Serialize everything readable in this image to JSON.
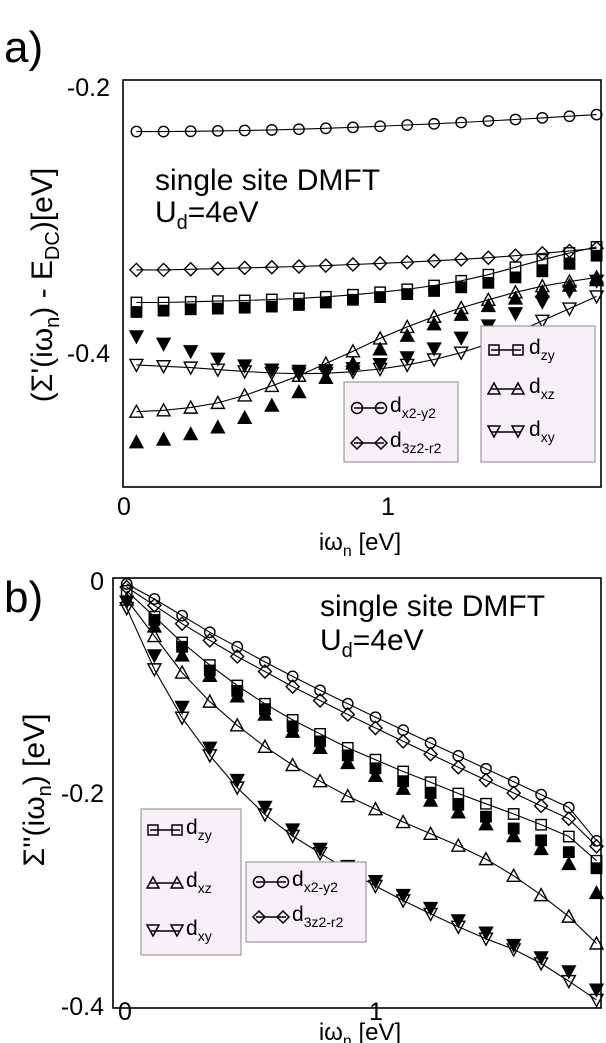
{
  "chart_data": [
    {
      "panel": "a)",
      "type": "scatter",
      "xlabel": "iω_n [eV]",
      "ylabel": "(Σ'(iω_n) - E_DC)[eV]",
      "xlim": [
        0,
        1.85
      ],
      "ylim": [
        -0.48,
        -0.18
      ],
      "xticks": [
        "0",
        "1"
      ],
      "yticks": [
        "-0.2",
        "-0.4"
      ],
      "annotation": [
        "single site DMFT",
        "U",
        "d",
        "=4eV"
      ],
      "legend_left": [
        "x2-y2",
        "3z2-r2"
      ],
      "legend_right": [
        "zy",
        "xz",
        "xy"
      ],
      "series": [
        {
          "name": "x2-y2",
          "marker": "circle",
          "filled": false,
          "line": true,
          "x": [
            0.052,
            0.157,
            0.262,
            0.367,
            0.471,
            0.576,
            0.681,
            0.785,
            0.89,
            0.995,
            1.1,
            1.204,
            1.309,
            1.414,
            1.519,
            1.623,
            1.728,
            1.833
          ],
          "y": [
            -0.218,
            -0.218,
            -0.2178,
            -0.2175,
            -0.2172,
            -0.2168,
            -0.2163,
            -0.2156,
            -0.2149,
            -0.2141,
            -0.2132,
            -0.2123,
            -0.2113,
            -0.2102,
            -0.2091,
            -0.2079,
            -0.2067,
            -0.2055
          ]
        },
        {
          "name": "3z2-r2",
          "marker": "diamond",
          "filled": false,
          "line": true,
          "x": [
            0.052,
            0.157,
            0.262,
            0.367,
            0.471,
            0.576,
            0.681,
            0.785,
            0.89,
            0.995,
            1.1,
            1.204,
            1.309,
            1.414,
            1.519,
            1.623,
            1.728,
            1.833
          ],
          "y": [
            -0.32,
            -0.32,
            -0.3195,
            -0.319,
            -0.3185,
            -0.318,
            -0.3175,
            -0.3168,
            -0.316,
            -0.3152,
            -0.3143,
            -0.3133,
            -0.3122,
            -0.311,
            -0.3095,
            -0.3078,
            -0.306,
            -0.304
          ]
        },
        {
          "name": "zy",
          "marker": "square",
          "filled": false,
          "line": true,
          "x": [
            0.052,
            0.157,
            0.262,
            0.367,
            0.471,
            0.576,
            0.681,
            0.785,
            0.89,
            0.995,
            1.1,
            1.204,
            1.309,
            1.414,
            1.519,
            1.623,
            1.728,
            1.833
          ],
          "y": [
            -0.344,
            -0.344,
            -0.3435,
            -0.343,
            -0.3425,
            -0.3418,
            -0.341,
            -0.3398,
            -0.3383,
            -0.3365,
            -0.3343,
            -0.3315,
            -0.328,
            -0.3235,
            -0.318,
            -0.3125,
            -0.3075,
            -0.303
          ]
        },
        {
          "name": "zy (filled)",
          "marker": "square",
          "filled": true,
          "line": false,
          "x": [
            0.052,
            0.157,
            0.262,
            0.367,
            0.471,
            0.576,
            0.681,
            0.785,
            0.89,
            0.995,
            1.1,
            1.204,
            1.309,
            1.414,
            1.519,
            1.623,
            1.728,
            1.833
          ],
          "y": [
            -0.351,
            -0.35,
            -0.349,
            -0.3485,
            -0.3478,
            -0.347,
            -0.3458,
            -0.344,
            -0.342,
            -0.34,
            -0.3378,
            -0.3355,
            -0.3328,
            -0.3295,
            -0.3255,
            -0.321,
            -0.3155,
            -0.3095
          ]
        },
        {
          "name": "xz",
          "marker": "triangle-up",
          "filled": false,
          "line": true,
          "x": [
            0.052,
            0.157,
            0.262,
            0.367,
            0.471,
            0.576,
            0.681,
            0.785,
            0.89,
            0.995,
            1.1,
            1.204,
            1.309,
            1.414,
            1.519,
            1.623,
            1.728,
            1.833
          ],
          "y": [
            -0.4245,
            -0.4235,
            -0.4215,
            -0.418,
            -0.4125,
            -0.4055,
            -0.398,
            -0.389,
            -0.38,
            -0.3705,
            -0.362,
            -0.3545,
            -0.348,
            -0.342,
            -0.3365,
            -0.332,
            -0.3285,
            -0.3255
          ]
        },
        {
          "name": "xz (filled)",
          "marker": "triangle-up",
          "filled": true,
          "line": false,
          "x": [
            0.052,
            0.157,
            0.262,
            0.367,
            0.471,
            0.576,
            0.681,
            0.785,
            0.89,
            0.995,
            1.1,
            1.204,
            1.309,
            1.414,
            1.519,
            1.623,
            1.728,
            1.833
          ],
          "y": [
            -0.447,
            -0.445,
            -0.441,
            -0.436,
            -0.429,
            -0.42,
            -0.41,
            -0.3995,
            -0.389,
            -0.3785,
            -0.3685,
            -0.36,
            -0.353,
            -0.3465,
            -0.341,
            -0.336,
            -0.3315,
            -0.3275
          ]
        },
        {
          "name": "xy",
          "marker": "triangle-down",
          "filled": false,
          "line": true,
          "x": [
            0.052,
            0.157,
            0.262,
            0.367,
            0.471,
            0.576,
            0.681,
            0.785,
            0.89,
            0.995,
            1.1,
            1.204,
            1.309,
            1.414,
            1.519,
            1.623,
            1.728,
            1.833
          ],
          "y": [
            -0.39,
            -0.391,
            -0.392,
            -0.3935,
            -0.3948,
            -0.396,
            -0.3965,
            -0.3962,
            -0.395,
            -0.393,
            -0.39,
            -0.386,
            -0.381,
            -0.3745,
            -0.3665,
            -0.3575,
            -0.3485,
            -0.3395
          ]
        },
        {
          "name": "xy (filled)",
          "marker": "triangle-down",
          "filled": true,
          "line": false,
          "x": [
            0.052,
            0.157,
            0.262,
            0.367,
            0.471,
            0.576,
            0.681,
            0.785,
            0.89,
            0.995,
            1.1,
            1.204,
            1.309,
            1.414,
            1.519,
            1.623,
            1.728,
            1.833
          ],
          "y": [
            -0.369,
            -0.3745,
            -0.38,
            -0.3855,
            -0.3905,
            -0.3935,
            -0.3945,
            -0.394,
            -0.3925,
            -0.3895,
            -0.3845,
            -0.378,
            -0.37,
            -0.361,
            -0.352,
            -0.3435,
            -0.3355,
            -0.328
          ]
        }
      ]
    },
    {
      "panel": "b)",
      "type": "scatter",
      "xlabel": "iω_n [eV]",
      "ylabel": "Σ''(iω_n) [eV]",
      "xlim": [
        0,
        1.85
      ],
      "ylim": [
        -0.4,
        0
      ],
      "xticks": [
        "0",
        "1"
      ],
      "yticks": [
        "0",
        "-0.2",
        "-0.4"
      ],
      "annotation": [
        "single site DMFT",
        "U",
        "d",
        "=4eV"
      ],
      "legend_left": [
        "zy",
        "xz",
        "xy"
      ],
      "legend_right": [
        "x2-y2",
        "3z2-r2"
      ],
      "series": [
        {
          "name": "x2-y2",
          "marker": "circle",
          "filled": false,
          "line": true,
          "x": [
            0.052,
            0.157,
            0.262,
            0.367,
            0.471,
            0.576,
            0.681,
            0.785,
            0.89,
            0.995,
            1.1,
            1.204,
            1.309,
            1.414,
            1.519,
            1.623,
            1.728,
            1.833
          ],
          "y": [
            -0.0055,
            -0.0195,
            -0.035,
            -0.0505,
            -0.064,
            -0.078,
            -0.0915,
            -0.1045,
            -0.117,
            -0.1295,
            -0.1415,
            -0.1535,
            -0.1655,
            -0.1775,
            -0.1895,
            -0.2015,
            -0.2135,
            -0.2445
          ]
        },
        {
          "name": "3z2-r2",
          "marker": "diamond",
          "filled": false,
          "line": true,
          "x": [
            0.052,
            0.157,
            0.262,
            0.367,
            0.471,
            0.576,
            0.681,
            0.785,
            0.89,
            0.995,
            1.1,
            1.204,
            1.309,
            1.414,
            1.519,
            1.623,
            1.728,
            1.833
          ],
          "y": [
            -0.0085,
            -0.0255,
            -0.0425,
            -0.058,
            -0.073,
            -0.087,
            -0.101,
            -0.114,
            -0.127,
            -0.1395,
            -0.152,
            -0.164,
            -0.176,
            -0.188,
            -0.2,
            -0.212,
            -0.224,
            -0.2495
          ]
        },
        {
          "name": "zy",
          "marker": "square",
          "filled": false,
          "line": true,
          "x": [
            0.052,
            0.157,
            0.262,
            0.367,
            0.471,
            0.576,
            0.681,
            0.785,
            0.89,
            0.995,
            1.1,
            1.204,
            1.309,
            1.414,
            1.519,
            1.623,
            1.728,
            1.833
          ],
          "y": [
            -0.012,
            -0.036,
            -0.06,
            -0.081,
            -0.1,
            -0.117,
            -0.132,
            -0.145,
            -0.158,
            -0.169,
            -0.18,
            -0.19,
            -0.2005,
            -0.21,
            -0.2195,
            -0.2295,
            -0.2405,
            -0.263
          ]
        },
        {
          "name": "zy (filled)",
          "marker": "square",
          "filled": true,
          "line": false,
          "x": [
            0.157,
            0.262,
            0.367,
            0.471,
            0.576,
            0.681,
            0.785,
            0.89,
            0.995,
            1.1,
            1.204,
            1.309,
            1.414,
            1.519,
            1.623,
            1.728,
            1.833
          ],
          "y": [
            -0.039,
            -0.064,
            -0.086,
            -0.105,
            -0.122,
            -0.138,
            -0.152,
            -0.165,
            -0.177,
            -0.189,
            -0.2,
            -0.211,
            -0.222,
            -0.233,
            -0.244,
            -0.255,
            -0.27
          ]
        },
        {
          "name": "xz",
          "marker": "triangle-up",
          "filled": false,
          "line": true,
          "x": [
            0.052,
            0.157,
            0.262,
            0.367,
            0.471,
            0.576,
            0.681,
            0.785,
            0.89,
            0.995,
            1.1,
            1.204,
            1.309,
            1.414,
            1.519,
            1.623,
            1.728,
            1.833
          ],
          "y": [
            -0.02,
            -0.054,
            -0.088,
            -0.115,
            -0.137,
            -0.157,
            -0.174,
            -0.189,
            -0.203,
            -0.215,
            -0.227,
            -0.238,
            -0.249,
            -0.2615,
            -0.277,
            -0.295,
            -0.315,
            -0.34
          ]
        },
        {
          "name": "xz (filled)",
          "marker": "triangle-up",
          "filled": true,
          "line": false,
          "x": [
            0.157,
            0.262,
            0.367,
            0.471,
            0.576,
            0.681,
            0.785,
            0.89,
            0.995,
            1.1,
            1.204,
            1.309,
            1.414,
            1.519,
            1.623,
            1.728,
            1.833
          ],
          "y": [
            -0.045,
            -0.072,
            -0.091,
            -0.11,
            -0.127,
            -0.143,
            -0.158,
            -0.172,
            -0.184,
            -0.196,
            -0.207,
            -0.218,
            -0.229,
            -0.24,
            -0.252,
            -0.266,
            -0.293
          ]
        },
        {
          "name": "xy",
          "marker": "triangle-down",
          "filled": false,
          "line": true,
          "x": [
            0.052,
            0.157,
            0.262,
            0.367,
            0.471,
            0.576,
            0.681,
            0.785,
            0.89,
            0.995,
            1.1,
            1.204,
            1.309,
            1.414,
            1.519,
            1.623,
            1.728,
            1.833
          ],
          "y": [
            -0.028,
            -0.085,
            -0.13,
            -0.165,
            -0.195,
            -0.22,
            -0.24,
            -0.256,
            -0.272,
            -0.2865,
            -0.3,
            -0.3125,
            -0.3245,
            -0.3355,
            -0.3455,
            -0.3585,
            -0.375,
            -0.3925
          ]
        },
        {
          "name": "xy (filled)",
          "marker": "triangle-down",
          "filled": true,
          "line": false,
          "x": [
            0.052,
            0.157,
            0.262,
            0.367,
            0.471,
            0.576,
            0.681,
            0.785,
            0.89,
            0.995,
            1.1,
            1.204,
            1.309,
            1.414,
            1.519,
            1.623,
            1.728,
            1.833
          ],
          "y": [
            -0.022,
            -0.072,
            -0.12,
            -0.158,
            -0.188,
            -0.213,
            -0.234,
            -0.252,
            -0.268,
            -0.282,
            -0.295,
            -0.307,
            -0.3185,
            -0.33,
            -0.3415,
            -0.353,
            -0.366,
            -0.383
          ]
        }
      ]
    }
  ]
}
